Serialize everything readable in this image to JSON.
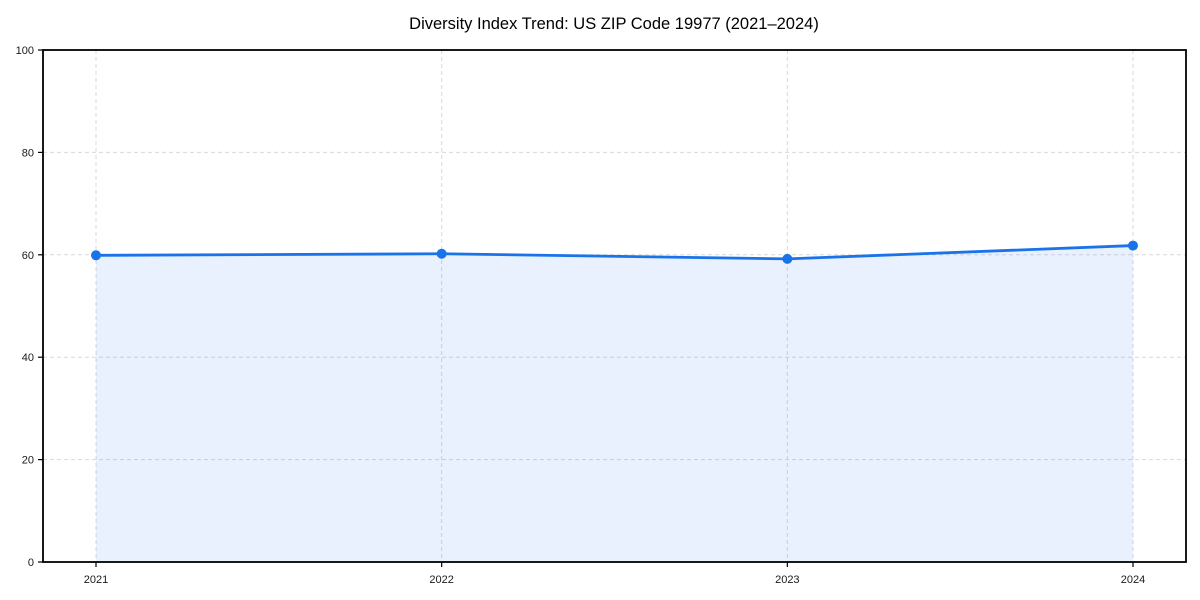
{
  "page": {
    "background": "#ffffff"
  },
  "chart_data": {
    "type": "area",
    "title": "Diversity Index Trend: US ZIP Code 19977 (2021–2024)",
    "x": [
      "2021",
      "2022",
      "2023",
      "2024"
    ],
    "series": [
      {
        "name": "Diversity Index",
        "values": [
          59.9,
          60.2,
          59.2,
          61.8
        ]
      }
    ],
    "xlabel": "",
    "ylabel": "",
    "ylim": [
      0,
      100
    ],
    "yticks": [
      0,
      20,
      40,
      60,
      80,
      100
    ],
    "grid": true,
    "grid_style": "dashed",
    "legend": false,
    "marker": "circle",
    "colors": {
      "line": "#1a73e8",
      "marker": "#1a73e8",
      "fill": "#1a73e8",
      "fill_opacity": 0.1,
      "grid": "#d9d9d9",
      "spine": "#000000",
      "tick_label": "#1a1a1a",
      "title": "#000000",
      "background": "#ffffff"
    }
  }
}
